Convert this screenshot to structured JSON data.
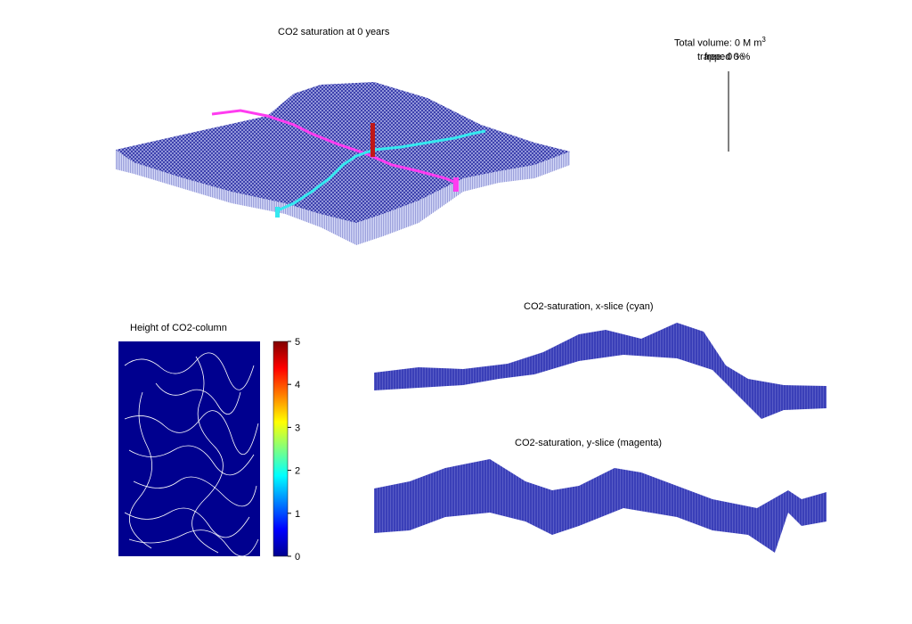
{
  "figure": {
    "main_title": "CO2 saturation at 0 years",
    "volume_label": "Total volume: 0 M m",
    "volume_exp": "3",
    "overlap_a": "trapped 0 %",
    "overlap_b": "free: 0 %"
  },
  "chart_data": [
    {
      "type": "surface",
      "title": "CO2 saturation at 0 years",
      "colors": {
        "surface": "#2b2fa0",
        "mesh": "#cfd3ff",
        "x_slice": "#35e8f0",
        "y_slice": "#ff3cf0",
        "well": "#c01818"
      }
    },
    {
      "type": "heatmap",
      "title": "Height of CO2-column",
      "colorbar": {
        "min": 0,
        "max": 5,
        "ticks": [
          "0",
          "1",
          "2",
          "3",
          "4",
          "5"
        ],
        "colormap": "jet"
      },
      "background_value": 0,
      "background_color": "#00008f"
    },
    {
      "type": "surface-slice",
      "title": "CO2-saturation, x-slice (cyan)",
      "color": "#2b2fa0"
    },
    {
      "type": "surface-slice",
      "title": "CO2-saturation, y-slice (magenta)",
      "color": "#2b2fa0"
    }
  ]
}
